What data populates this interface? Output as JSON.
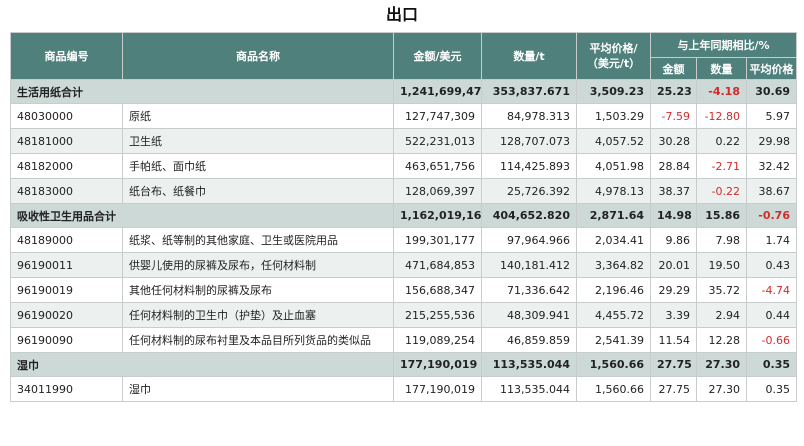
{
  "title": "出口",
  "headers": {
    "code": "商品编号",
    "name": "商品名称",
    "amount": "金额/美元",
    "quantity": "数量/t",
    "price": "平均价格/（美元/t）",
    "yoy": "与上年同期相比/%",
    "yoy_amount": "金额",
    "yoy_quantity": "数量",
    "yoy_price": "平均价格"
  },
  "rows": [
    {
      "type": "total",
      "code": "生活用纸合计",
      "name": "",
      "amount": "1,241,699,475",
      "quantity": "353,837.671",
      "price": "3,509.23",
      "yoy_amount": "25.23",
      "yoy_quantity": "-4.18",
      "yoy_price": "30.69"
    },
    {
      "type": "item",
      "code": "48030000",
      "name": "原纸",
      "amount": "127,747,309",
      "quantity": "84,978.313",
      "price": "1,503.29",
      "yoy_amount": "-7.59",
      "yoy_quantity": "-12.80",
      "yoy_price": "5.97"
    },
    {
      "type": "alt",
      "code": "48181000",
      "name": "卫生纸",
      "amount": "522,231,013",
      "quantity": "128,707.073",
      "price": "4,057.52",
      "yoy_amount": "30.28",
      "yoy_quantity": "0.22",
      "yoy_price": "29.98"
    },
    {
      "type": "item",
      "code": "48182000",
      "name": "手帕纸、面巾纸",
      "amount": "463,651,756",
      "quantity": "114,425.893",
      "price": "4,051.98",
      "yoy_amount": "28.84",
      "yoy_quantity": "-2.71",
      "yoy_price": "32.42"
    },
    {
      "type": "alt",
      "code": "48183000",
      "name": "纸台布、纸餐巾",
      "amount": "128,069,397",
      "quantity": "25,726.392",
      "price": "4,978.13",
      "yoy_amount": "38.37",
      "yoy_quantity": "-0.22",
      "yoy_price": "38.67"
    },
    {
      "type": "total",
      "code": "吸收性卫生用品合计",
      "name": "",
      "amount": "1,162,019,167",
      "quantity": "404,652.820",
      "price": "2,871.64",
      "yoy_amount": "14.98",
      "yoy_quantity": "15.86",
      "yoy_price": "-0.76"
    },
    {
      "type": "item",
      "code": "48189000",
      "name": "纸浆、纸等制的其他家庭、卫生或医院用品",
      "amount": "199,301,177",
      "quantity": "97,964.966",
      "price": "2,034.41",
      "yoy_amount": "9.86",
      "yoy_quantity": "7.98",
      "yoy_price": "1.74"
    },
    {
      "type": "alt",
      "code": "96190011",
      "name": "供婴儿使用的尿裤及尿布，任何材料制",
      "amount": "471,684,853",
      "quantity": "140,181.412",
      "price": "3,364.82",
      "yoy_amount": "20.01",
      "yoy_quantity": "19.50",
      "yoy_price": "0.43"
    },
    {
      "type": "item",
      "code": "96190019",
      "name": "其他任何材料制的尿裤及尿布",
      "amount": "156,688,347",
      "quantity": "71,336.642",
      "price": "2,196.46",
      "yoy_amount": "29.29",
      "yoy_quantity": "35.72",
      "yoy_price": "-4.74"
    },
    {
      "type": "alt",
      "code": "96190020",
      "name": "任何材料制的卫生巾（护垫）及止血塞",
      "amount": "215,255,536",
      "quantity": "48,309.941",
      "price": "4,455.72",
      "yoy_amount": "3.39",
      "yoy_quantity": "2.94",
      "yoy_price": "0.44"
    },
    {
      "type": "item",
      "code": "96190090",
      "name": "任何材料制的尿布衬里及本品目所列货品的类似品",
      "amount": "119,089,254",
      "quantity": "46,859.859",
      "price": "2,541.39",
      "yoy_amount": "11.54",
      "yoy_quantity": "12.28",
      "yoy_price": "-0.66"
    },
    {
      "type": "total",
      "code": "湿巾",
      "name": "",
      "amount": "177,190,019",
      "quantity": "113,535.044",
      "price": "1,560.66",
      "yoy_amount": "27.75",
      "yoy_quantity": "27.30",
      "yoy_price": "0.35"
    },
    {
      "type": "item",
      "code": "34011990",
      "name": "湿巾",
      "amount": "177,190,019",
      "quantity": "113,535.044",
      "price": "1,560.66",
      "yoy_amount": "27.75",
      "yoy_quantity": "27.30",
      "yoy_price": "0.35"
    }
  ],
  "colors": {
    "header_bg": "#4f807b",
    "total_bg": "#ccd9d7",
    "alt_bg": "#ecf1f0",
    "negative": "#d22b2b"
  }
}
